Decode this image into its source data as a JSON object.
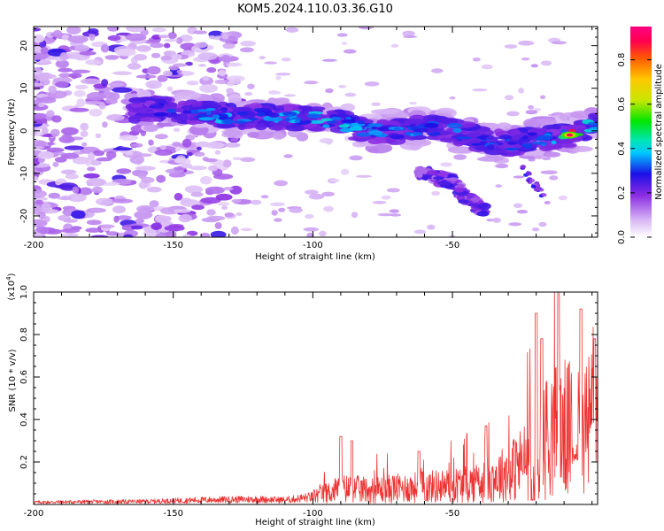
{
  "title": "KOM5.2024.110.03.36.G10",
  "chart_data": [
    {
      "type": "heatmap",
      "xlabel": "Height of straight line (km)",
      "ylabel": "Frequency (Hz)",
      "xlim": [
        -200,
        2
      ],
      "ylim": [
        -25,
        24.5
      ],
      "xticks": [
        -200,
        -150,
        -100,
        -50
      ],
      "yticks": [
        -20,
        -10,
        0,
        10,
        20
      ],
      "colorbar": {
        "label": "Normalized spectral amplitude",
        "range": [
          0,
          0.95
        ],
        "ticks": [
          "0.0",
          "0.2",
          "0.4",
          "0.6",
          "0.8"
        ],
        "colors": [
          "#ffffff",
          "#d9b8f5",
          "#8a2be2",
          "#1a10e6",
          "#00c8ff",
          "#00e6b4",
          "#00e600",
          "#c8e600",
          "#ffc800",
          "#ff5a00",
          "#ff0050",
          "#ff0080"
        ]
      },
      "main_ridge": [
        {
          "x": -160,
          "y": 5,
          "value": 0.25
        },
        {
          "x": -150,
          "y": 5,
          "value": 0.3
        },
        {
          "x": -140,
          "y": 4,
          "value": 0.35
        },
        {
          "x": -130,
          "y": 3.5,
          "value": 0.4
        },
        {
          "x": -120,
          "y": 3.5,
          "value": 0.3
        },
        {
          "x": -110,
          "y": 3,
          "value": 0.4
        },
        {
          "x": -100,
          "y": 3,
          "value": 0.4
        },
        {
          "x": -90,
          "y": 2,
          "value": 0.4
        },
        {
          "x": -80,
          "y": 0,
          "value": 0.35
        },
        {
          "x": -70,
          "y": 0,
          "value": 0.35
        },
        {
          "x": -60,
          "y": 1,
          "value": 0.35
        },
        {
          "x": -50,
          "y": 0,
          "value": 0.35
        },
        {
          "x": -40,
          "y": -2,
          "value": 0.3
        },
        {
          "x": -30,
          "y": -3,
          "value": 0.35
        },
        {
          "x": -20,
          "y": -2,
          "value": 0.3
        },
        {
          "x": -10,
          "y": -1,
          "value": 0.45
        },
        {
          "x": -8,
          "y": -1,
          "value": 0.9
        },
        {
          "x": 0,
          "y": 1,
          "value": 0.4
        }
      ],
      "secondary_branch": [
        {
          "x": -60,
          "y": -10,
          "value": 0.25
        },
        {
          "x": -50,
          "y": -12,
          "value": 0.3
        },
        {
          "x": -45,
          "y": -16,
          "value": 0.3
        },
        {
          "x": -40,
          "y": -18,
          "value": 0.3
        }
      ]
    },
    {
      "type": "line",
      "xlabel": "Height of straight line (km)",
      "ylabel": "SNR (10 * v/v)",
      "y_multiplier": "(x10",
      "y_multiplier_exp": "4",
      "y_multiplier_close": ")",
      "xlim": [
        -200,
        2
      ],
      "ylim": [
        0,
        1.0
      ],
      "xticks": [
        -200,
        -150,
        -100,
        -50
      ],
      "yticks": [
        "0.2",
        "0.4",
        "0.6",
        "0.8",
        "1.0"
      ],
      "line_color": "#ee3333",
      "envelope": [
        {
          "x": -200,
          "y": 0.015
        },
        {
          "x": -180,
          "y": 0.018
        },
        {
          "x": -160,
          "y": 0.02
        },
        {
          "x": -140,
          "y": 0.03
        },
        {
          "x": -120,
          "y": 0.035
        },
        {
          "x": -110,
          "y": 0.03
        },
        {
          "x": -100,
          "y": 0.05
        },
        {
          "x": -95,
          "y": 0.07
        },
        {
          "x": -90,
          "y": 0.1
        },
        {
          "x": -80,
          "y": 0.09
        },
        {
          "x": -70,
          "y": 0.1
        },
        {
          "x": -60,
          "y": 0.11
        },
        {
          "x": -50,
          "y": 0.12
        },
        {
          "x": -40,
          "y": 0.14
        },
        {
          "x": -30,
          "y": 0.2
        },
        {
          "x": -20,
          "y": 0.32
        },
        {
          "x": -15,
          "y": 0.45
        },
        {
          "x": -10,
          "y": 0.48
        },
        {
          "x": -6,
          "y": 0.45
        },
        {
          "x": -2,
          "y": 0.5
        },
        {
          "x": 2,
          "y": 0.55
        }
      ],
      "peaks": [
        {
          "x": -90,
          "y": 0.32
        },
        {
          "x": -86,
          "y": 0.3
        },
        {
          "x": -62,
          "y": 0.25
        },
        {
          "x": -38,
          "y": 0.37
        },
        {
          "x": -20,
          "y": 0.9
        },
        {
          "x": -18,
          "y": 0.78
        },
        {
          "x": -12,
          "y": 1.0
        },
        {
          "x": -4,
          "y": 0.92
        },
        {
          "x": 1,
          "y": 0.78
        }
      ]
    }
  ]
}
